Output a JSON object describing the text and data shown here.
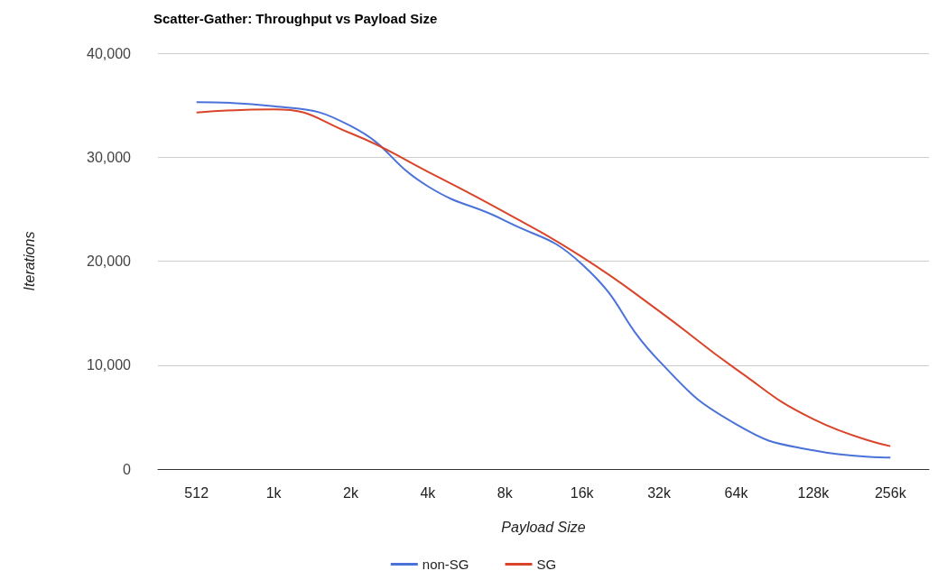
{
  "chart_data": {
    "type": "line",
    "title": "Scatter-Gather: Throughput vs Payload Size",
    "xlabel": "Payload Size",
    "ylabel": "Iterations",
    "categories": [
      "512",
      "1k",
      "2k",
      "4k",
      "8k",
      "16k",
      "32k",
      "64k",
      "128k",
      "256k"
    ],
    "series": [
      {
        "name": "non-SG",
        "color": "#4a72d8",
        "values": [
          35300,
          34900,
          33000,
          27200,
          23900,
          19700,
          10400,
          4300,
          1800,
          1100
        ]
      },
      {
        "name": "SG",
        "color": "#d9452a",
        "values": [
          34300,
          34600,
          32300,
          28600,
          24700,
          20400,
          15200,
          9600,
          4800,
          2200
        ]
      }
    ],
    "ylim": [
      0,
      40000
    ],
    "yticks": [
      {
        "value": 0,
        "label": "0"
      },
      {
        "value": 10000,
        "label": "10,000"
      },
      {
        "value": 20000,
        "label": "20,000"
      },
      {
        "value": 30000,
        "label": "30,000"
      },
      {
        "value": 40000,
        "label": "40,000"
      }
    ],
    "grid": "y",
    "legend": "bottom",
    "marker": "none",
    "line_style": "solid"
  }
}
